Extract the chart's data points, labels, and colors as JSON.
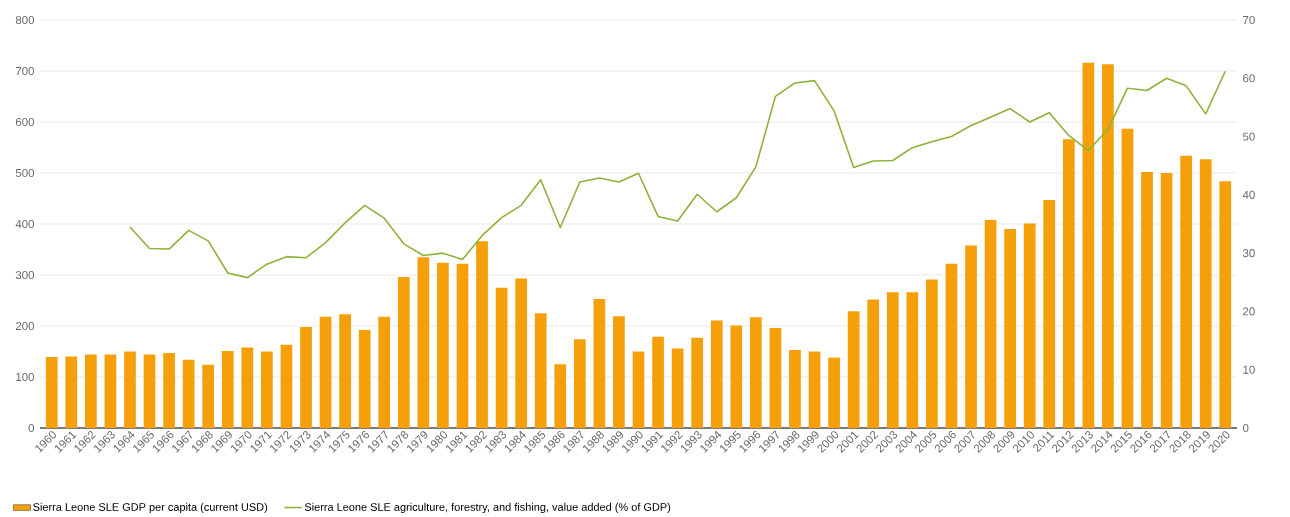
{
  "chart_data": {
    "type": "bar",
    "categories": [
      "1960",
      "1961",
      "1962",
      "1963",
      "1964",
      "1965",
      "1966",
      "1967",
      "1968",
      "1969",
      "1970",
      "1971",
      "1972",
      "1973",
      "1974",
      "1975",
      "1976",
      "1977",
      "1978",
      "1979",
      "1980",
      "1981",
      "1982",
      "1983",
      "1984",
      "1985",
      "1986",
      "1987",
      "1988",
      "1989",
      "1990",
      "1991",
      "1992",
      "1993",
      "1994",
      "1995",
      "1996",
      "1997",
      "1998",
      "1999",
      "2000",
      "2001",
      "2002",
      "2003",
      "2004",
      "2005",
      "2006",
      "2007",
      "2008",
      "2009",
      "2010",
      "2011",
      "2012",
      "2013",
      "2014",
      "2015",
      "2016",
      "2017",
      "2018",
      "2019",
      "2020"
    ],
    "series": [
      {
        "name": "Sierra Leone SLE GDP per capita (current USD)",
        "color": "#f5a00a",
        "values": [
          139,
          140,
          144,
          144,
          150,
          144,
          147,
          134,
          124,
          151,
          158,
          150,
          163,
          198,
          218,
          223,
          192,
          218,
          296,
          335,
          324,
          322,
          366,
          275,
          293,
          225,
          125,
          174,
          253,
          219,
          150,
          179,
          156,
          177,
          211,
          201,
          217,
          196,
          153,
          150,
          138,
          229,
          252,
          266,
          266,
          291,
          322,
          358,
          408,
          390,
          401,
          447,
          566,
          716,
          713,
          587,
          502,
          500,
          534,
          527,
          484
        ]
      },
      {
        "name": "Sierra Leone SLE agriculture, forestry, and fishing, value added (% of GDP)",
        "type": "line",
        "axis": "y2",
        "color": "#8db33a",
        "values": [
          null,
          null,
          null,
          null,
          34.5,
          30.8,
          30.7,
          33.9,
          32.1,
          26.6,
          25.8,
          28.1,
          29.4,
          29.2,
          31.8,
          35.2,
          38.2,
          36.0,
          31.6,
          29.6,
          30.0,
          28.9,
          33.0,
          36.1,
          38.2,
          42.6,
          34.4,
          42.2,
          42.9,
          42.2,
          43.7,
          36.3,
          35.5,
          40.1,
          37.1,
          39.5,
          44.8,
          56.9,
          59.2,
          59.6,
          54.4,
          44.7,
          45.8,
          45.9,
          48.1,
          49.1,
          50.0,
          51.9,
          53.3,
          54.8,
          52.5,
          54.1,
          50.2,
          47.6,
          51.2,
          58.3,
          57.9,
          60.0,
          58.7,
          53.9,
          61.2
        ]
      }
    ],
    "ylim": [
      0,
      800
    ],
    "yticks": [
      0,
      100,
      200,
      300,
      400,
      500,
      600,
      700,
      800
    ],
    "y2lim": [
      0,
      70
    ],
    "y2ticks": [
      0,
      10,
      20,
      30,
      40,
      50,
      60,
      70
    ],
    "grid": "y",
    "legend": "bottom"
  }
}
